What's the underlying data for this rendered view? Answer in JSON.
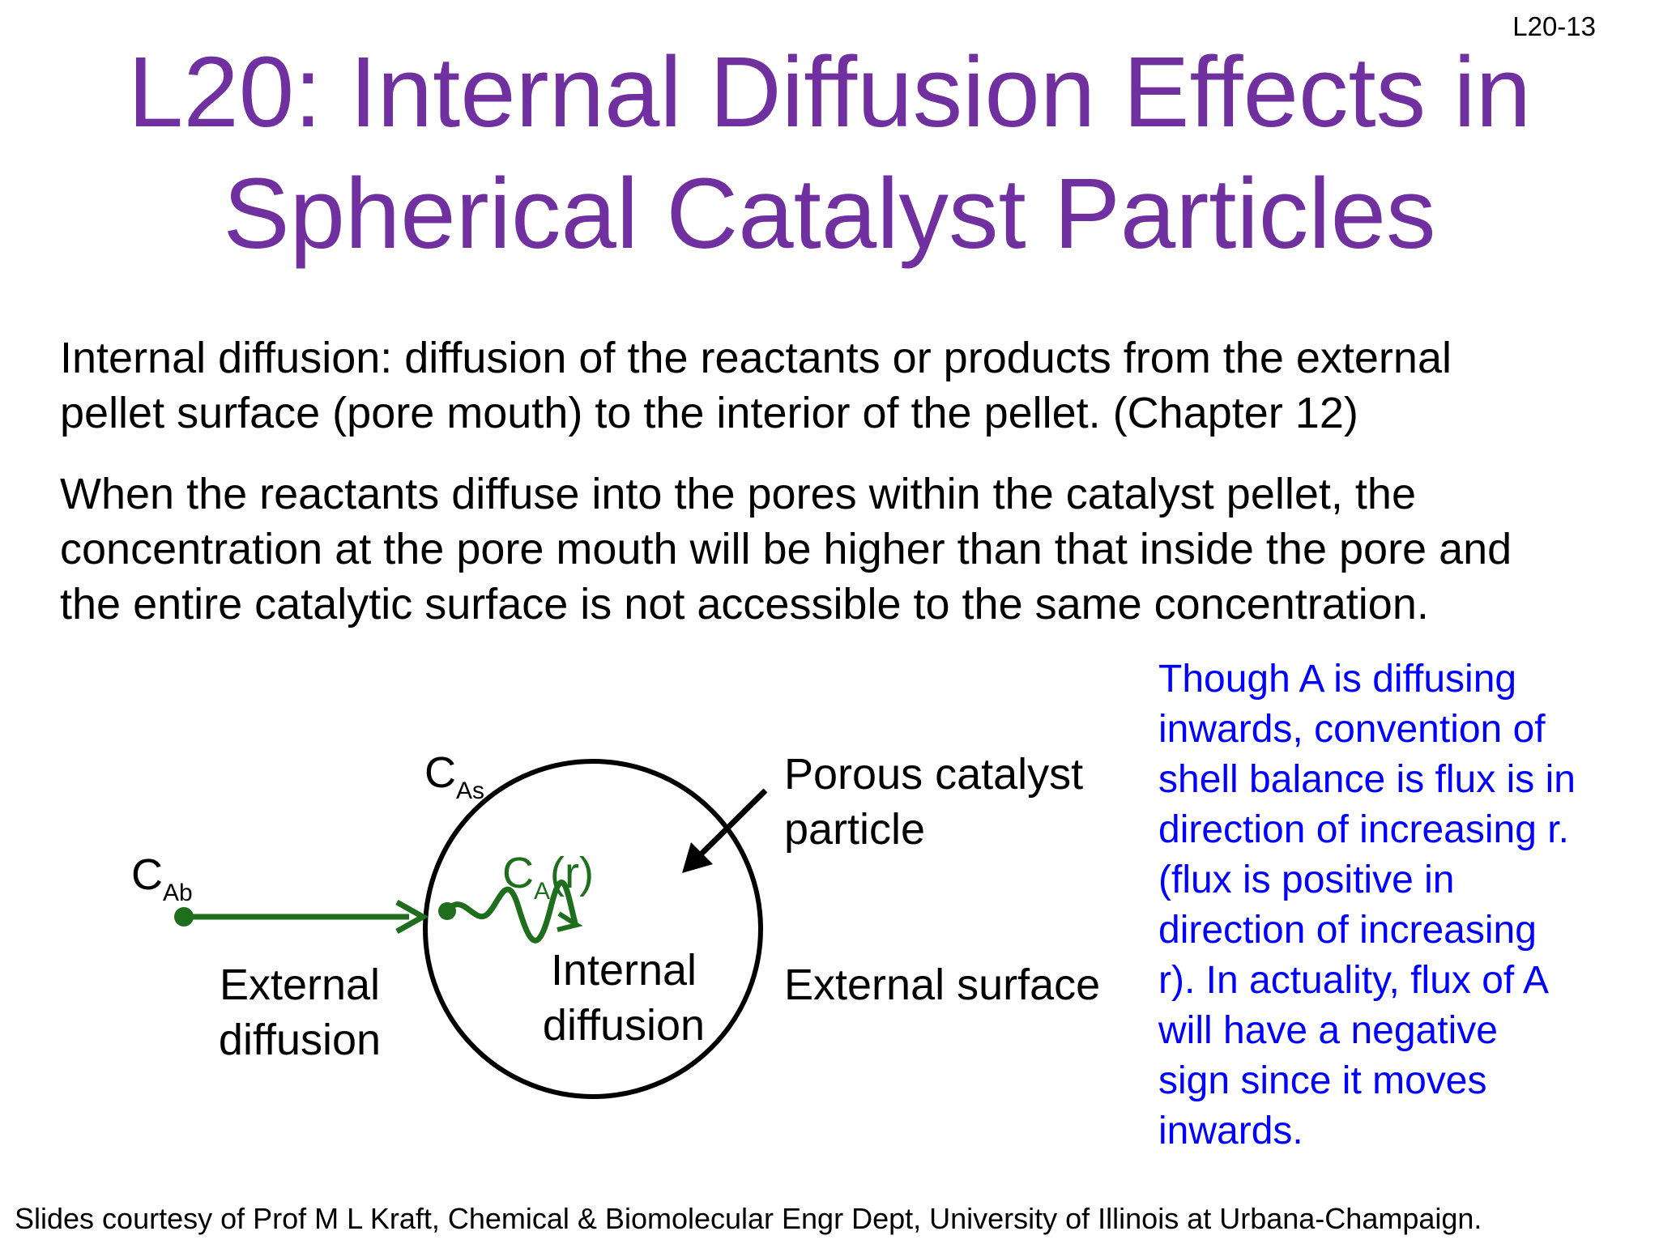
{
  "slide_number": "L20-13",
  "title": {
    "line1": "L20: Internal Diffusion Effects in",
    "line2": "Spherical Catalyst Particles"
  },
  "body": {
    "paragraph1": [
      "Internal diffusion: diffusion of the reactants or products from the external",
      "pellet surface (pore mouth) to the interior of the pellet. (Chapter 12)"
    ],
    "paragraph2": [
      "When the reactants diffuse into the pores within the catalyst pellet, the",
      "concentration at the pore mouth will be higher than that inside the pore and",
      "the entire catalytic surface is not accessible to the same concentration."
    ]
  },
  "diagram": {
    "c_ab": {
      "main": "C",
      "sub": "Ab"
    },
    "c_as": {
      "main": "C",
      "sub": "As"
    },
    "c_a_r": {
      "main": "C",
      "sub": "A",
      "suffix": "(r)"
    },
    "external_diffusion": [
      "External",
      "diffusion"
    ],
    "internal_diffusion": [
      "Internal",
      "diffusion"
    ],
    "porous_catalyst": [
      "Porous catalyst",
      "particle"
    ],
    "external_surface": "External surface"
  },
  "note": [
    "Though A is diffusing",
    "inwards, convention of",
    "shell balance is flux is in",
    "direction of increasing r.",
    "(flux is positive in",
    "direction of increasing",
    "r).  In actuality, flux of A",
    "will have a negative",
    "sign since it moves",
    "inwards."
  ],
  "footer": "Slides courtesy of Prof M L Kraft, Chemical & Biomolecular Engr Dept, University of Illinois at Urbana-Champaign.",
  "colors": {
    "title": "#7030a0",
    "note": "#0000ff",
    "arrow_green": "#1e6e1e"
  }
}
